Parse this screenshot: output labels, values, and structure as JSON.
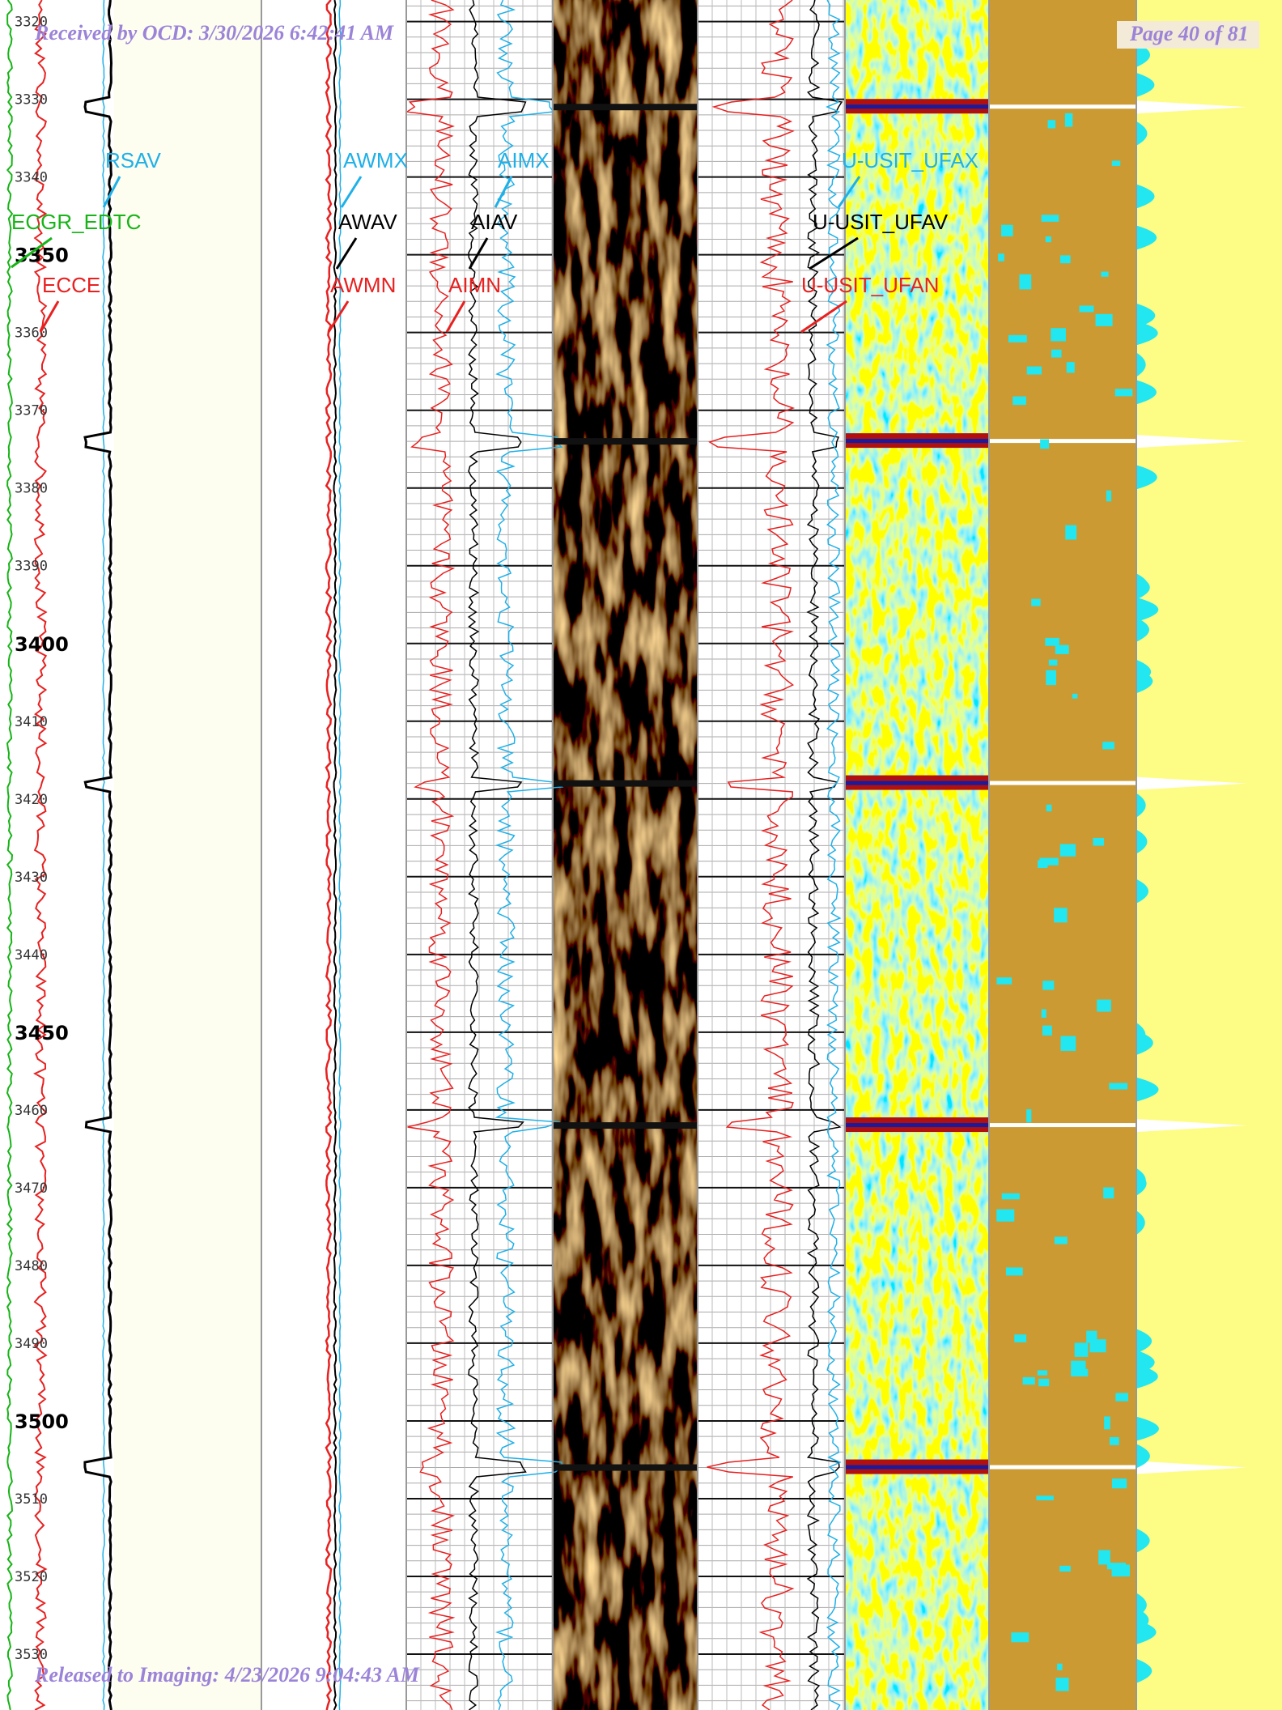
{
  "header": {
    "received": "Received by OCD: 3/30/2026 6:42:41 AM",
    "page": "Page 40 of 81"
  },
  "footer": {
    "released": "Released to Imaging: 4/23/2026 9:04:43 AM"
  },
  "depth_labels": [
    3320,
    3330,
    3340,
    3350,
    3360,
    3370,
    3380,
    3390,
    3400,
    3410,
    3420,
    3430,
    3440,
    3450,
    3460,
    3470,
    3480,
    3490,
    3500,
    3510,
    3520,
    3530
  ],
  "curve_labels": {
    "rsav": "RSAV",
    "ecgr_edtc": "ECGR_EDTC",
    "ecce": "ECCE",
    "awmx": "AWMX",
    "awav": "AWAV",
    "awmn": "AWMN",
    "aimx": "AIMX",
    "aiav": "AIAV",
    "aimn": "AIMN",
    "ufax": "U-USIT_UFAX",
    "ufav": "U-USIT_UFAV",
    "ufan": "U-USIT_UFAN"
  }
}
